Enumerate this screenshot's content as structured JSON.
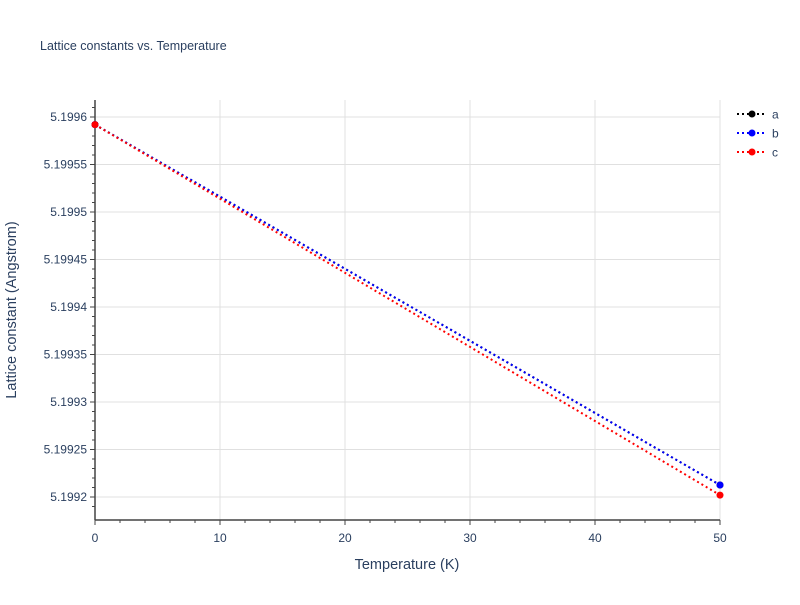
{
  "chart_data": {
    "type": "line",
    "title": "Lattice constants vs. Temperature",
    "xlabel": "Temperature (K)",
    "ylabel": "Lattice constant (Angstrom)",
    "xlim": [
      0,
      50
    ],
    "ylim": [
      5.19918,
      5.19962
    ],
    "xticks": [
      0,
      10,
      20,
      30,
      40,
      50
    ],
    "yticks": [
      5.1992,
      5.19925,
      5.1993,
      5.19935,
      5.1994,
      5.19945,
      5.1995,
      5.19955,
      5.1996
    ],
    "ytick_labels": [
      "5.1992",
      "5.19925",
      "5.1993",
      "5.19935",
      "5.1994",
      "5.19945",
      "5.1995",
      "5.19955",
      "5.1996"
    ],
    "grid": true,
    "legend": "top-right",
    "series": [
      {
        "name": "a",
        "color": "#000000",
        "x": [
          0,
          50
        ],
        "y": [
          5.199592,
          5.1992126
        ]
      },
      {
        "name": "b",
        "color": "#0000ff",
        "x": [
          0,
          50
        ],
        "y": [
          5.199592,
          5.1992126
        ]
      },
      {
        "name": "c",
        "color": "#ff0000",
        "x": [
          0,
          50
        ],
        "y": [
          5.199592,
          5.199202
        ]
      }
    ]
  }
}
